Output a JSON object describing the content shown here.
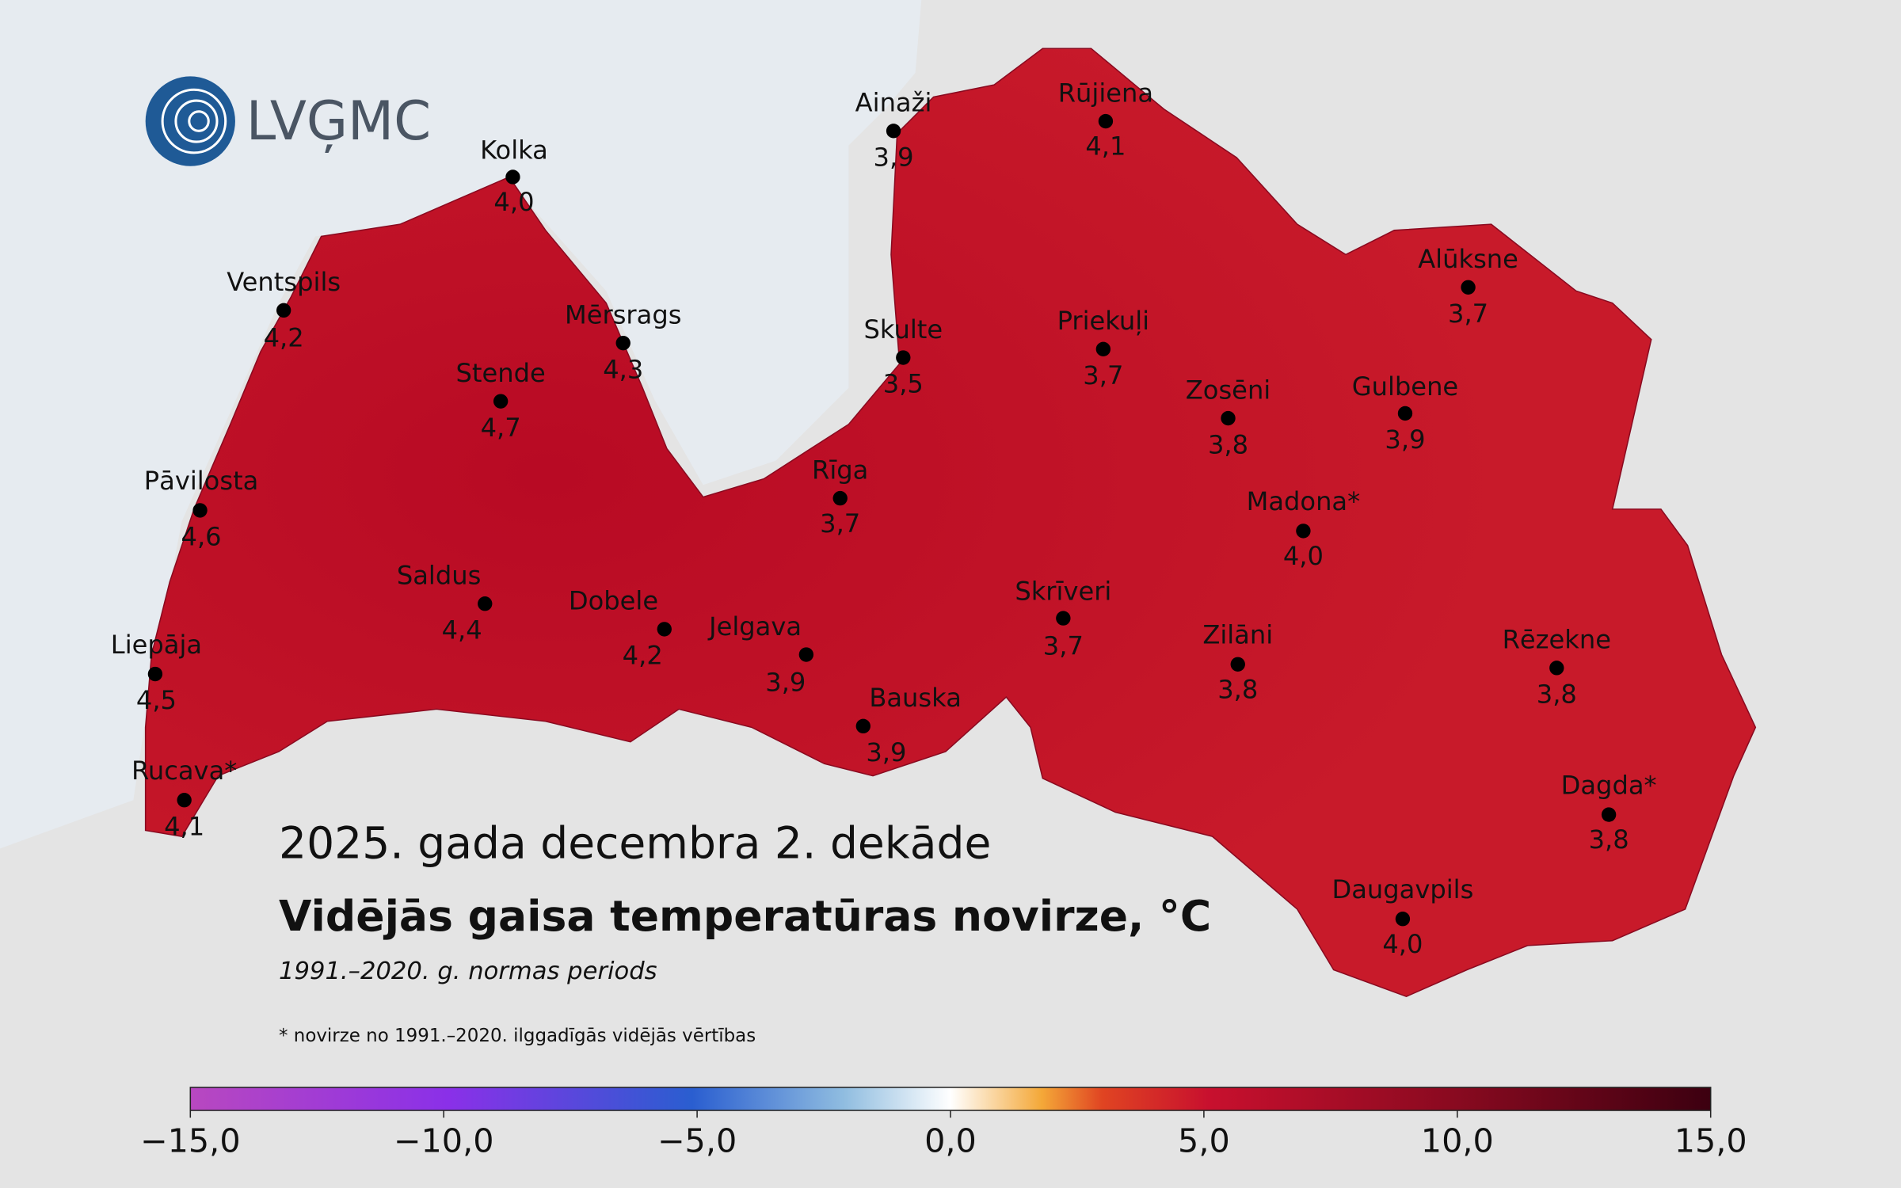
{
  "header": {
    "logo": "LVĢMC",
    "title": "2025. gada decembra 2. dekāde",
    "subtitle": "Vidējās gaisa temperatūras novirze, °C",
    "period": "1991.–2020. g. normas periods",
    "footnote": "* novirze no 1991.–2020. ilggadīgās vidējās vērtības"
  },
  "stations": [
    {
      "name": "Kolka",
      "value": "4,0"
    },
    {
      "name": "Ventspils",
      "value": "4,2"
    },
    {
      "name": "Mērsrags",
      "value": "4,3"
    },
    {
      "name": "Stende",
      "value": "4,7"
    },
    {
      "name": "Pāvilosta",
      "value": "4,6"
    },
    {
      "name": "Saldus",
      "value": "4,4"
    },
    {
      "name": "Liepāja",
      "value": "4,5"
    },
    {
      "name": "Rucava*",
      "value": "4,1"
    },
    {
      "name": "Dobele",
      "value": "4,2"
    },
    {
      "name": "Jelgava",
      "value": "3,9"
    },
    {
      "name": "Rīga",
      "value": "3,7"
    },
    {
      "name": "Bauska",
      "value": "3,9"
    },
    {
      "name": "Skulte",
      "value": "3,5"
    },
    {
      "name": "Ainaži",
      "value": "3,9"
    },
    {
      "name": "Rūjiena",
      "value": "4,1"
    },
    {
      "name": "Priekuļi",
      "value": "3,7"
    },
    {
      "name": "Skrīveri",
      "value": "3,7"
    },
    {
      "name": "Zosēni",
      "value": "3,8"
    },
    {
      "name": "Madona*",
      "value": "4,0"
    },
    {
      "name": "Gulbene",
      "value": "3,9"
    },
    {
      "name": "Alūksne",
      "value": "3,7"
    },
    {
      "name": "Zilāni",
      "value": "3,8"
    },
    {
      "name": "Rēzekne",
      "value": "3,8"
    },
    {
      "name": "Dagda*",
      "value": "3,8"
    },
    {
      "name": "Daugavpils",
      "value": "4,0"
    }
  ],
  "colorbar": {
    "lim": [
      -15,
      15
    ],
    "ticks": [
      {
        "value": -15,
        "label": "−15,0"
      },
      {
        "value": -10,
        "label": "−10,0"
      },
      {
        "value": -5,
        "label": "−5,0"
      },
      {
        "value": 0,
        "label": "0,0"
      },
      {
        "value": 5,
        "label": "5,0"
      },
      {
        "value": 10,
        "label": "10,0"
      },
      {
        "value": 15,
        "label": "15,0"
      }
    ]
  }
}
